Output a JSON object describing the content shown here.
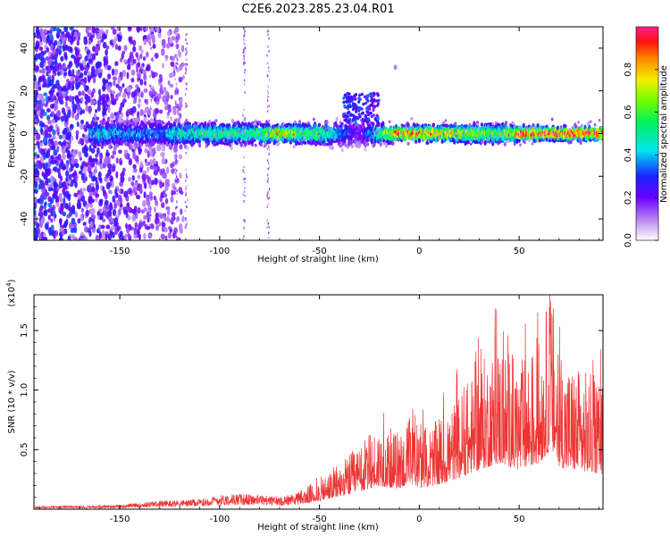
{
  "figure_title": "C2E6.2023.285.23.04.R01",
  "chart_data": [
    {
      "type": "heatmap",
      "xlabel": "Height of straight line (km)",
      "ylabel": "Frequency (Hz)",
      "xlim": [
        -193,
        92
      ],
      "ylim": [
        -50,
        50
      ],
      "xticks": [
        -150,
        -100,
        -50,
        0,
        50
      ],
      "yticks": [
        -40,
        -20,
        0,
        20,
        40
      ],
      "colorbar": {
        "label": "Normalized spectral amplitude",
        "range": [
          0.0,
          1.0
        ],
        "ticks": [
          0.0,
          0.2,
          0.4,
          0.6,
          0.8
        ],
        "tick_labels": [
          "0.0",
          "0.2",
          "0.4",
          "0.6",
          "0.8"
        ]
      },
      "description_points": [
        {
          "x": -190,
          "y": 0,
          "v": 0.15
        },
        {
          "x": -160,
          "y": -10,
          "v": 0.45
        },
        {
          "x": -130,
          "y": 0,
          "v": 0.35
        },
        {
          "x": -120,
          "y": -2,
          "v": 0.5
        },
        {
          "x": -100,
          "y": 0,
          "v": 0.55
        },
        {
          "x": -80,
          "y": -1,
          "v": 0.55
        },
        {
          "x": -70,
          "y": 0,
          "v": 0.85
        },
        {
          "x": -60,
          "y": 1,
          "v": 0.6
        },
        {
          "x": -50,
          "y": 2,
          "v": 0.6
        },
        {
          "x": -30,
          "y": 12,
          "v": 0.2
        },
        {
          "x": -10,
          "y": 0,
          "v": 0.9
        },
        {
          "x": 0,
          "y": 0,
          "v": 0.85
        },
        {
          "x": 20,
          "y": 0,
          "v": 0.75
        },
        {
          "x": 40,
          "y": 0,
          "v": 0.6
        },
        {
          "x": 50,
          "y": 0,
          "v": 0.9
        },
        {
          "x": 70,
          "y": 0,
          "v": 0.95
        },
        {
          "x": 90,
          "y": 0,
          "v": 0.95
        }
      ]
    },
    {
      "type": "line",
      "xlabel": "Height of straight line (km)",
      "ylabel": "SNR (10 * v/v)",
      "scale_label": "(x10",
      "scale_exponent": "4",
      "xlim": [
        -193,
        92
      ],
      "ylim": [
        0,
        1.8
      ],
      "xticks": [
        -150,
        -100,
        -50,
        0,
        50
      ],
      "yticks": [
        0.5,
        1.0,
        1.5
      ],
      "ytick_labels": [
        "0.5",
        "1.0",
        "1.5"
      ],
      "color": "#ee3333",
      "envelope": {
        "x": [
          -193,
          -150,
          -130,
          -110,
          -100,
          -90,
          -70,
          -60,
          -50,
          -40,
          -30,
          -20,
          -10,
          -5,
          0,
          10,
          20,
          30,
          40,
          50,
          60,
          66,
          70,
          80,
          92
        ],
        "y": [
          0.02,
          0.03,
          0.06,
          0.07,
          0.1,
          0.11,
          0.09,
          0.12,
          0.2,
          0.3,
          0.42,
          0.55,
          0.5,
          0.6,
          0.52,
          0.58,
          0.75,
          0.95,
          1.1,
          0.95,
          1.1,
          1.45,
          1.0,
          0.92,
          0.85
        ]
      }
    }
  ]
}
